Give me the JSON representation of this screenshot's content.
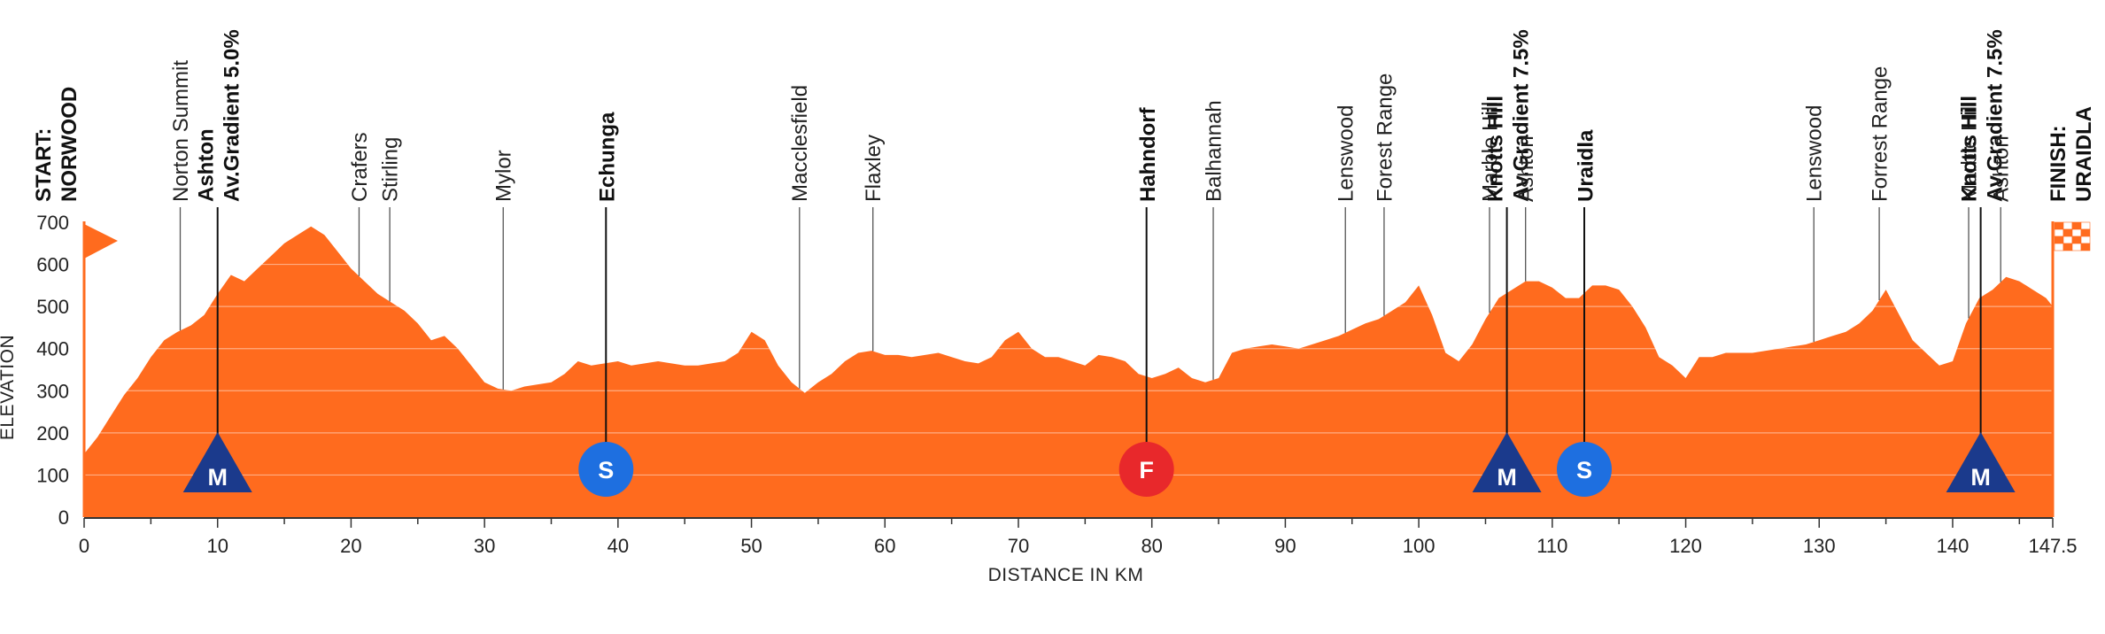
{
  "chart_data": {
    "type": "area",
    "xlabel": "DISTANCE IN KM",
    "ylabel": "ELEVATION",
    "xlim": [
      0,
      147.5
    ],
    "ylim": [
      0,
      700
    ],
    "x_ticks": [
      0,
      10,
      20,
      30,
      40,
      50,
      60,
      70,
      80,
      90,
      100,
      110,
      120,
      130,
      140,
      147.5
    ],
    "x_tick_labels": [
      "0",
      "10",
      "20",
      "30",
      "40",
      "50",
      "60",
      "70",
      "80",
      "90",
      "100",
      "110",
      "120",
      "130",
      "140",
      "147.5"
    ],
    "y_ticks": [
      0,
      100,
      200,
      300,
      400,
      500,
      600,
      700
    ],
    "y_tick_labels": [
      "0",
      "100",
      "200",
      "300",
      "400",
      "500",
      "600",
      "700"
    ],
    "grid": true,
    "fill_color": "#FF6B1E",
    "profile": {
      "x": [
        0,
        1,
        2,
        3,
        4,
        5,
        6,
        7,
        8,
        9,
        10,
        11,
        12,
        13,
        14,
        15,
        16,
        17,
        18,
        19,
        20,
        21,
        22,
        23,
        24,
        25,
        26,
        27,
        28,
        29,
        30,
        31,
        32,
        33,
        34,
        35,
        36,
        37,
        38,
        39,
        40,
        41,
        42,
        43,
        44,
        45,
        46,
        47,
        48,
        49,
        50,
        51,
        52,
        53,
        54,
        55,
        56,
        57,
        58,
        59,
        60,
        61,
        62,
        63,
        64,
        65,
        66,
        67,
        68,
        69,
        70,
        71,
        72,
        73,
        74,
        75,
        76,
        77,
        78,
        79,
        80,
        81,
        82,
        83,
        84,
        85,
        86,
        87,
        88,
        89,
        90,
        91,
        92,
        93,
        94,
        95,
        96,
        97,
        98,
        99,
        100,
        101,
        102,
        103,
        104,
        105,
        106,
        107,
        108,
        109,
        110,
        111,
        112,
        113,
        114,
        115,
        116,
        117,
        118,
        119,
        120,
        121,
        122,
        123,
        124,
        125,
        126,
        127,
        128,
        129,
        130,
        131,
        132,
        133,
        134,
        135,
        136,
        137,
        138,
        139,
        140,
        141,
        142,
        143,
        144,
        145,
        146,
        147,
        147.5
      ],
      "y": [
        150,
        190,
        240,
        290,
        330,
        380,
        420,
        440,
        455,
        480,
        530,
        575,
        560,
        590,
        620,
        650,
        670,
        690,
        670,
        630,
        590,
        560,
        530,
        510,
        490,
        460,
        420,
        430,
        400,
        360,
        320,
        305,
        300,
        310,
        315,
        320,
        340,
        370,
        360,
        365,
        370,
        360,
        365,
        370,
        365,
        360,
        360,
        365,
        370,
        390,
        440,
        420,
        360,
        320,
        295,
        320,
        340,
        370,
        390,
        395,
        385,
        385,
        380,
        385,
        390,
        380,
        370,
        365,
        380,
        420,
        440,
        400,
        380,
        380,
        370,
        360,
        385,
        380,
        370,
        340,
        330,
        340,
        355,
        330,
        320,
        330,
        390,
        400,
        405,
        410,
        405,
        400,
        410,
        420,
        430,
        445,
        460,
        470,
        490,
        510,
        550,
        480,
        390,
        370,
        410,
        470,
        520,
        540,
        560,
        560,
        545,
        520,
        520,
        550,
        550,
        540,
        500,
        450,
        380,
        360,
        330,
        380,
        380,
        390,
        390,
        390,
        395,
        400,
        405,
        410,
        420,
        430,
        440,
        460,
        490,
        540,
        480,
        420,
        390,
        360,
        370,
        460,
        520,
        540,
        570,
        560,
        540,
        520,
        500
      ]
    },
    "locations": [
      {
        "km": 0,
        "label": "START:\nNORWOOD",
        "bold": true
      },
      {
        "km": 7.2,
        "label": "Norton Summit",
        "bold": false
      },
      {
        "km": 10,
        "label": "Ashton\nAv.Gradient 5.0%",
        "bold": true
      },
      {
        "km": 20.6,
        "label": "Crafers",
        "bold": false
      },
      {
        "km": 22.9,
        "label": "Stirling",
        "bold": false
      },
      {
        "km": 31.4,
        "label": "Mylor",
        "bold": false
      },
      {
        "km": 39.1,
        "label": "Echunga",
        "bold": true
      },
      {
        "km": 53.6,
        "label": "Macclesfield",
        "bold": false
      },
      {
        "km": 59.1,
        "label": "Flaxley",
        "bold": false
      },
      {
        "km": 79.6,
        "label": "Hahndorf",
        "bold": true
      },
      {
        "km": 84.6,
        "label": "Balhannah",
        "bold": false
      },
      {
        "km": 94.5,
        "label": "Lenswood",
        "bold": false
      },
      {
        "km": 97.4,
        "label": "Forest Range",
        "bold": false
      },
      {
        "km": 105.3,
        "label": "Marble Hill",
        "bold": false
      },
      {
        "km": 106.6,
        "label": "Knotts Hill\nAv.Gradient 7.5%",
        "bold": true
      },
      {
        "km": 108.0,
        "label": "Ashton",
        "bold": false
      },
      {
        "km": 112.4,
        "label": "Uraidla",
        "bold": true
      },
      {
        "km": 129.6,
        "label": "Lenswood",
        "bold": false
      },
      {
        "km": 134.5,
        "label": "Forrest Range",
        "bold": false
      },
      {
        "km": 141.2,
        "label": "Marble Hill",
        "bold": false
      },
      {
        "km": 142.1,
        "label": "Knotts Hill\nAv.Gradient 7.5%",
        "bold": true
      },
      {
        "km": 143.6,
        "label": "Ashton",
        "bold": false
      },
      {
        "km": 147.5,
        "label": "FINISH:\nURAIDLA",
        "bold": true
      }
    ],
    "markers": [
      {
        "km": 10,
        "type": "mountain",
        "letter": "M",
        "color": "#1B3A8C"
      },
      {
        "km": 39.1,
        "type": "sprint",
        "letter": "S",
        "color": "#1E6FE0"
      },
      {
        "km": 79.6,
        "type": "feed",
        "letter": "F",
        "color": "#E8282B"
      },
      {
        "km": 106.6,
        "type": "mountain",
        "letter": "M",
        "color": "#1B3A8C"
      },
      {
        "km": 112.4,
        "type": "sprint",
        "letter": "S",
        "color": "#1E6FE0"
      },
      {
        "km": 142.1,
        "type": "mountain",
        "letter": "M",
        "color": "#1B3A8C"
      }
    ]
  }
}
